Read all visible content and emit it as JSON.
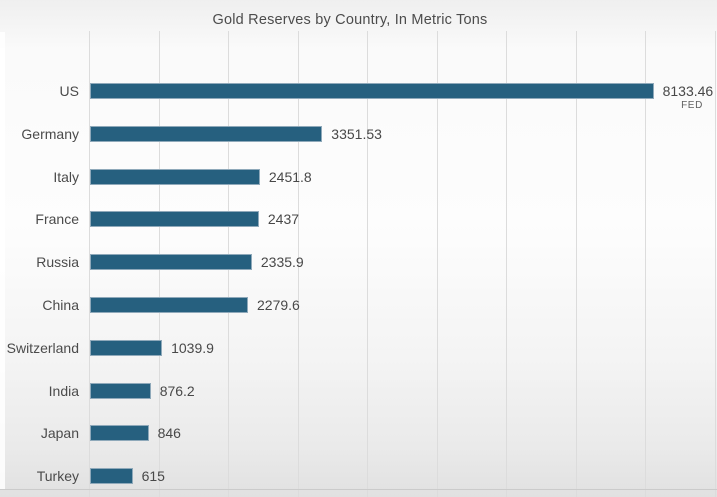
{
  "chart_data": {
    "type": "bar",
    "orientation": "horizontal",
    "title": "Gold Reserves by Country, In Metric Tons",
    "categories": [
      "US",
      "Germany",
      "Italy",
      "France",
      "Russia",
      "China",
      "Switzerland",
      "India",
      "Japan",
      "Turkey"
    ],
    "values": [
      8133.46,
      3351.53,
      2451.8,
      2437,
      2335.9,
      2279.6,
      1039.9,
      876.2,
      846,
      615
    ],
    "value_labels": [
      "8133.46",
      "3351.53",
      "2451.8",
      "2437",
      "2335.9",
      "2279.6",
      "1039.9",
      "876.2",
      "846",
      "615"
    ],
    "annotation": "FED",
    "xlim": [
      0,
      9000
    ],
    "grid_step": 1000,
    "grid": true,
    "legend": "none",
    "bar_color": "#26607f",
    "bar_border_color": "#8fa9ba",
    "gridline_color": "#dcdcdc",
    "text_color": "#4b4b4b"
  }
}
